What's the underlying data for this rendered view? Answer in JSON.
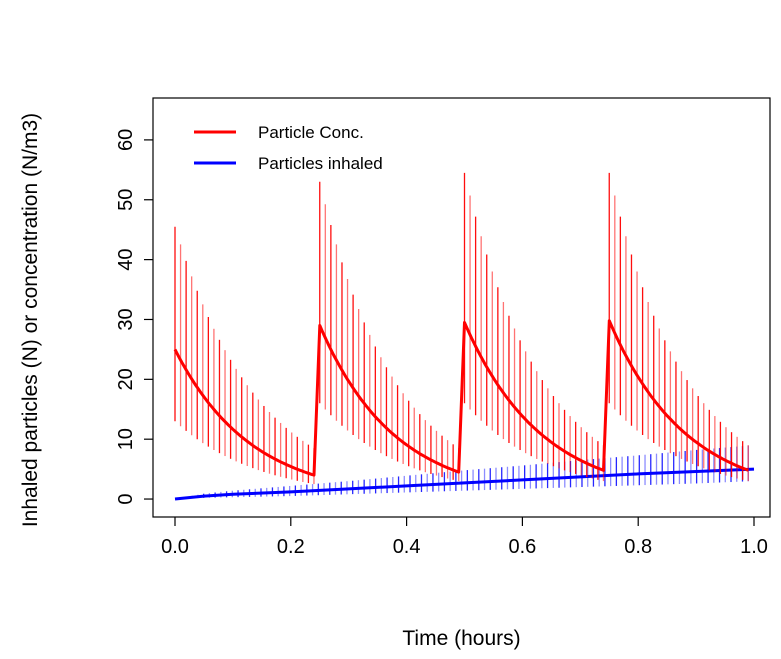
{
  "chart_data": {
    "type": "line",
    "title": "",
    "xlabel": "Time (hours)",
    "ylabel": "Inhaled particles (N) or concentration (N/m3)",
    "xlim": [
      0,
      1
    ],
    "ylim": [
      -3,
      67
    ],
    "x_ticks": [
      "0.0",
      "0.2",
      "0.4",
      "0.6",
      "0.8",
      "1.0"
    ],
    "x_tick_values": [
      0,
      0.2,
      0.4,
      0.6,
      0.8,
      1.0
    ],
    "y_ticks": [
      "0",
      "10",
      "20",
      "30",
      "40",
      "50",
      "60"
    ],
    "y_tick_values": [
      0,
      10,
      20,
      30,
      40,
      50,
      60
    ],
    "grid": false,
    "legend_position": "top-left",
    "series": [
      {
        "name": "Particle Conc.",
        "color": "#ff0000",
        "style": "line-with-vertical-uncertainty-bars",
        "segments": [
          {
            "t_start": 0.0,
            "t_end": 0.24,
            "mean_start": 25.0,
            "mean_end": 4.0,
            "upper_start": 45.5,
            "upper_end": 8.5,
            "lower_start": 13.0,
            "lower_end": 2.5
          },
          {
            "t_start": 0.25,
            "t_end": 0.49,
            "mean_start": 29.0,
            "mean_end": 4.5,
            "upper_start": 53.0,
            "upper_end": 8.5,
            "lower_start": 16.0,
            "lower_end": 3.0
          },
          {
            "t_start": 0.5,
            "t_end": 0.74,
            "mean_start": 29.5,
            "mean_end": 4.8,
            "upper_start": 54.5,
            "upper_end": 9.0,
            "lower_start": 16.0,
            "lower_end": 3.0
          },
          {
            "t_start": 0.75,
            "t_end": 0.99,
            "mean_start": 29.8,
            "mean_end": 4.8,
            "upper_start": 54.5,
            "upper_end": 9.0,
            "lower_start": 16.0,
            "lower_end": 3.0
          }
        ]
      },
      {
        "name": "Particles inhaled",
        "color": "#0000ff",
        "style": "line-with-vertical-uncertainty-bars",
        "x": [
          0.0,
          0.05,
          0.1,
          0.2,
          0.3,
          0.4,
          0.5,
          0.6,
          0.7,
          0.8,
          0.9,
          1.0
        ],
        "mean": [
          0.0,
          0.5,
          0.8,
          1.2,
          1.7,
          2.2,
          2.7,
          3.2,
          3.7,
          4.2,
          4.6,
          5.0
        ],
        "upper": [
          0.0,
          0.9,
          1.4,
          2.2,
          3.0,
          3.9,
          4.8,
          5.6,
          6.5,
          7.3,
          8.2,
          9.0
        ],
        "lower": [
          0.0,
          0.2,
          0.3,
          0.5,
          0.8,
          1.1,
          1.4,
          1.7,
          2.0,
          2.3,
          2.6,
          3.0
        ]
      }
    ]
  }
}
